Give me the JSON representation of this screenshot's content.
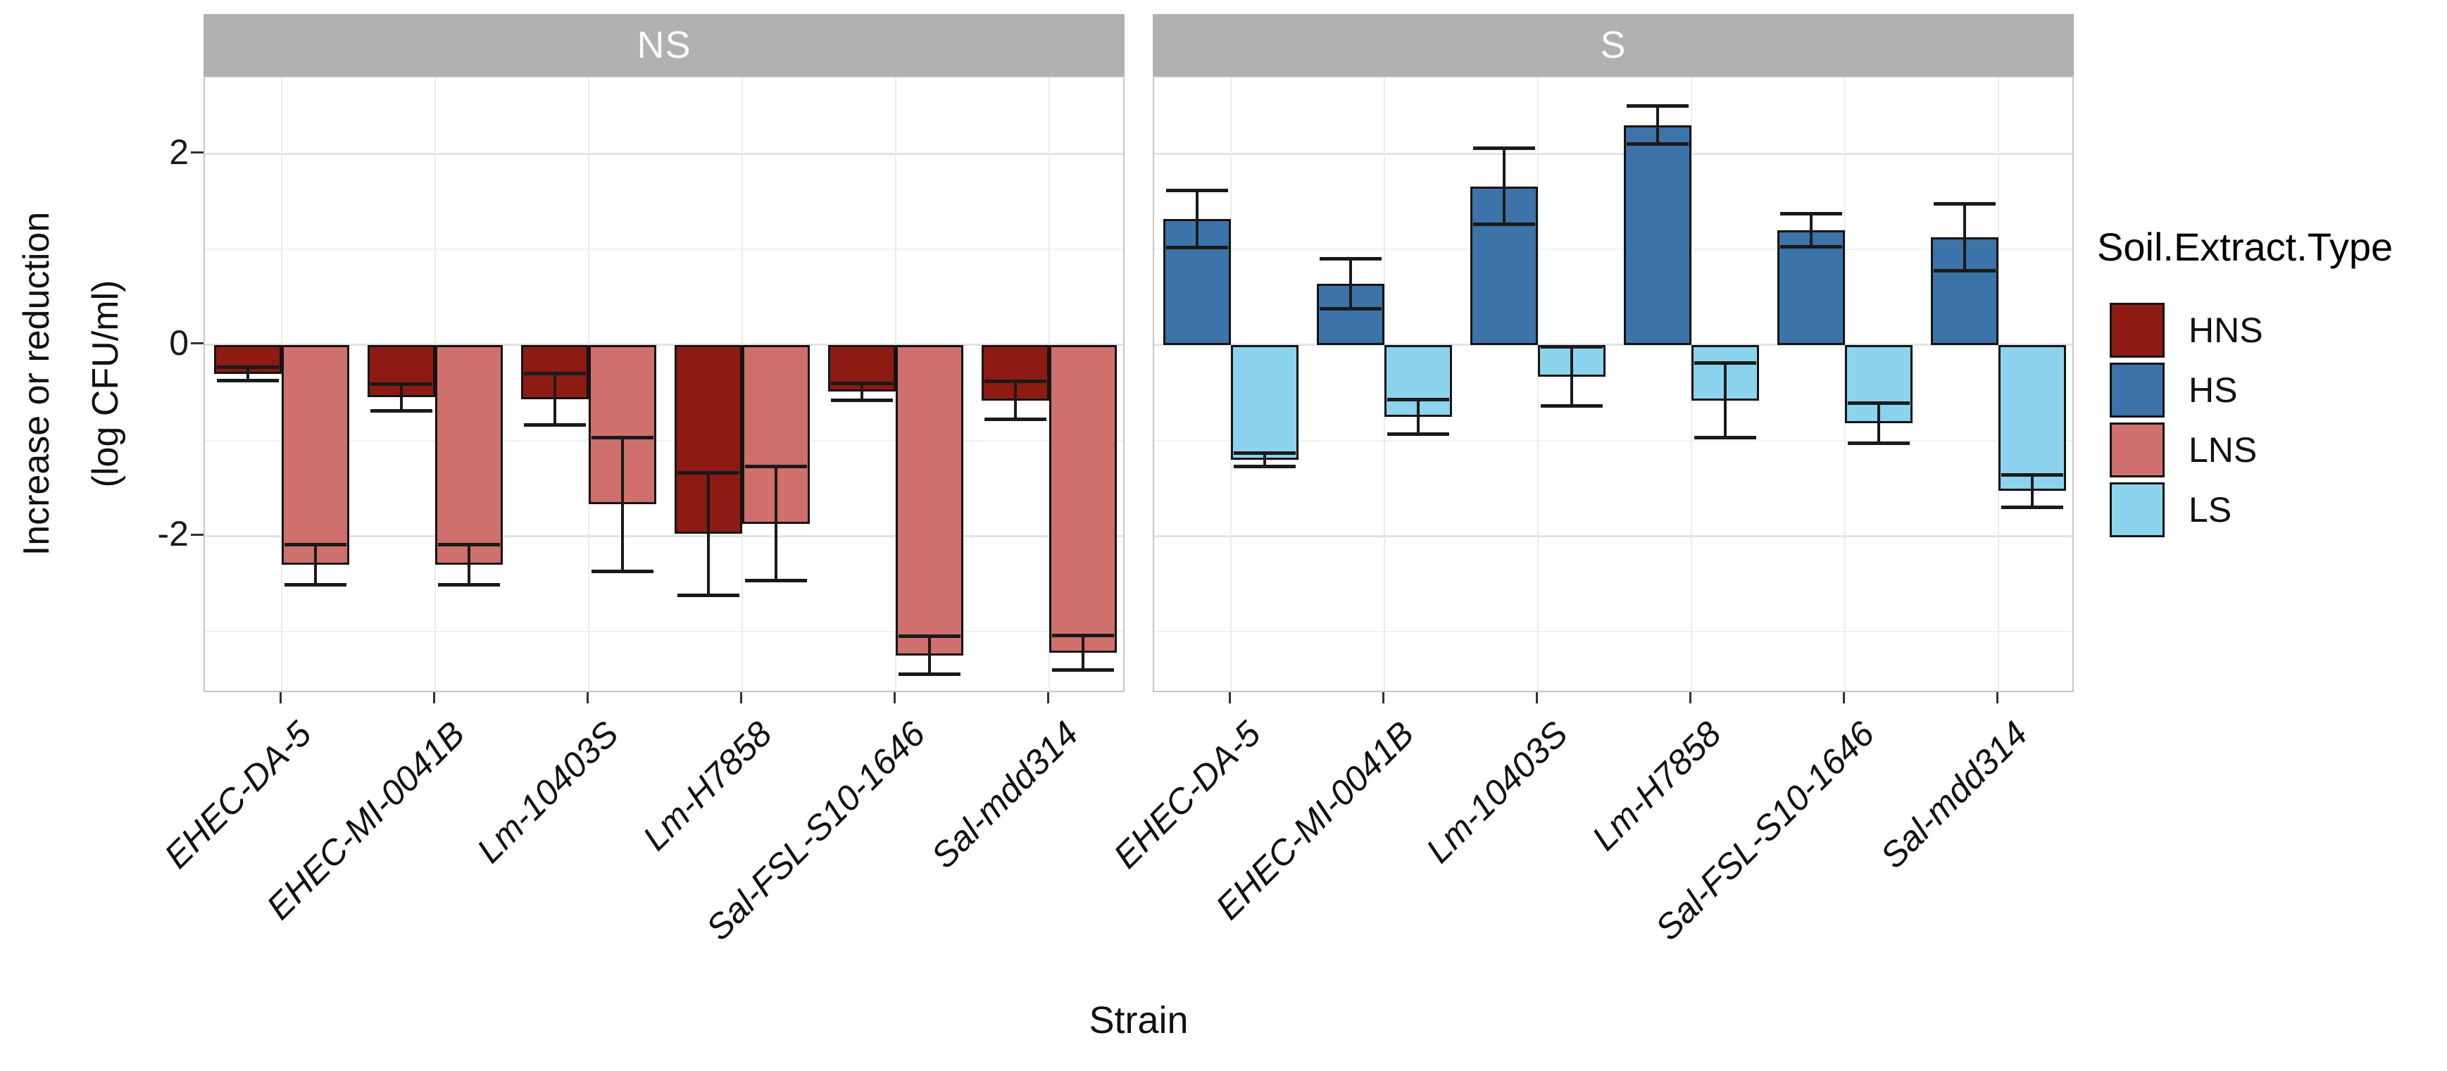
{
  "axes": {
    "y_title_line1": "Increase or reduction",
    "y_title_line2": "(log CFU/ml)",
    "x_title": "Strain"
  },
  "legend": {
    "title": "Soil.Extract.Type",
    "items": [
      {
        "label": "HNS",
        "color": "#8e1b13"
      },
      {
        "label": "HS",
        "color": "#3c73a8"
      },
      {
        "label": "LNS",
        "color": "#d0706d"
      },
      {
        "label": "LS",
        "color": "#8cd3ee"
      }
    ]
  },
  "colors": {
    "strip_bg": "#b0b0b0",
    "strip_text": "#fafafa",
    "grid_major": "#e3e3e3",
    "grid_minor": "#f1f1f1",
    "grid_vertical": "#ececec",
    "panel_border": "#c6c6c6",
    "bar_stroke": "#141414",
    "error_bar": "#1a1a1a",
    "axis_text": "#1a1a1a",
    "tick_mark": "#333333"
  },
  "chart_data": {
    "type": "bar",
    "title": "",
    "xlabel": "Strain",
    "ylabel": "Increase or reduction (log CFU/ml)",
    "legend_title": "Soil.Extract.Type",
    "legend_position": "right",
    "grid": true,
    "facet_variable_values": [
      "NS",
      "S"
    ],
    "categories": [
      "EHEC-DA-5",
      "EHEC-MI-0041B",
      "Lm-10403S",
      "Lm-H7858",
      "Sal-FSL-S10-1646",
      "Sal-mdd314"
    ],
    "y_ticks_major": [
      2,
      0,
      -2
    ],
    "y_ticks_minor": [
      1,
      -1,
      -3
    ],
    "ylim": [
      -3.65,
      2.8
    ],
    "facets": [
      {
        "label": "NS",
        "series": [
          {
            "name": "HNS",
            "color": "#8e1b13",
            "values": [
              -0.3,
              -0.55,
              -0.57,
              -1.98,
              -0.49,
              -0.58
            ],
            "errors": [
              0.07,
              0.14,
              0.27,
              0.64,
              0.09,
              0.2
            ]
          },
          {
            "name": "LNS",
            "color": "#d0706d",
            "values": [
              -2.3,
              -2.3,
              -1.67,
              -1.87,
              -3.25,
              -3.22
            ],
            "errors": [
              0.21,
              0.21,
              0.7,
              0.6,
              0.2,
              0.18
            ]
          }
        ]
      },
      {
        "label": "S",
        "series": [
          {
            "name": "HS",
            "color": "#3c73a8",
            "values": [
              1.32,
              0.64,
              1.66,
              2.3,
              1.2,
              1.13
            ],
            "errors": [
              0.3,
              0.26,
              0.4,
              0.2,
              0.17,
              0.35
            ]
          },
          {
            "name": "LS",
            "color": "#8cd3ee",
            "values": [
              -1.2,
              -0.75,
              -0.33,
              -0.58,
              -0.82,
              -1.53
            ],
            "errors": [
              0.07,
              0.18,
              0.31,
              0.39,
              0.21,
              0.17
            ]
          }
        ]
      }
    ]
  }
}
